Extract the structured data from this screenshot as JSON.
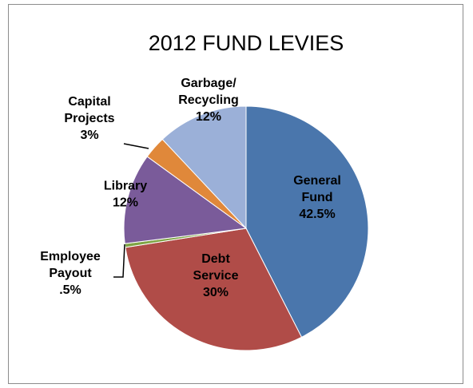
{
  "chart_data": {
    "type": "pie",
    "title": "2012 FUND LEVIES",
    "slices": [
      {
        "name": "General Fund",
        "label_lines": [
          "General",
          "Fund",
          "42.5%"
        ],
        "value": 42.5,
        "color": "#4a76ac"
      },
      {
        "name": "Debt Service",
        "label_lines": [
          "Debt",
          "Service",
          "30%"
        ],
        "value": 30,
        "color": "#b04c48"
      },
      {
        "name": "Employee Payout",
        "label_lines": [
          "Employee",
          "Payout",
          ".5%"
        ],
        "value": 0.5,
        "color": "#7ea444"
      },
      {
        "name": "Library",
        "label_lines": [
          "Library",
          "12%"
        ],
        "value": 12,
        "color": "#7a5b9a"
      },
      {
        "name": "Capital Projects",
        "label_lines": [
          "Capital",
          "Projects",
          "3%"
        ],
        "value": 3,
        "color": "#e0883a"
      },
      {
        "name": "Garbage/Recycling",
        "label_lines": [
          "Garbage/",
          "Recycling",
          "12%"
        ],
        "value": 12,
        "color": "#9bb0d8"
      }
    ],
    "start_angle_deg": 0,
    "direction": "clockwise",
    "legend": "none"
  }
}
